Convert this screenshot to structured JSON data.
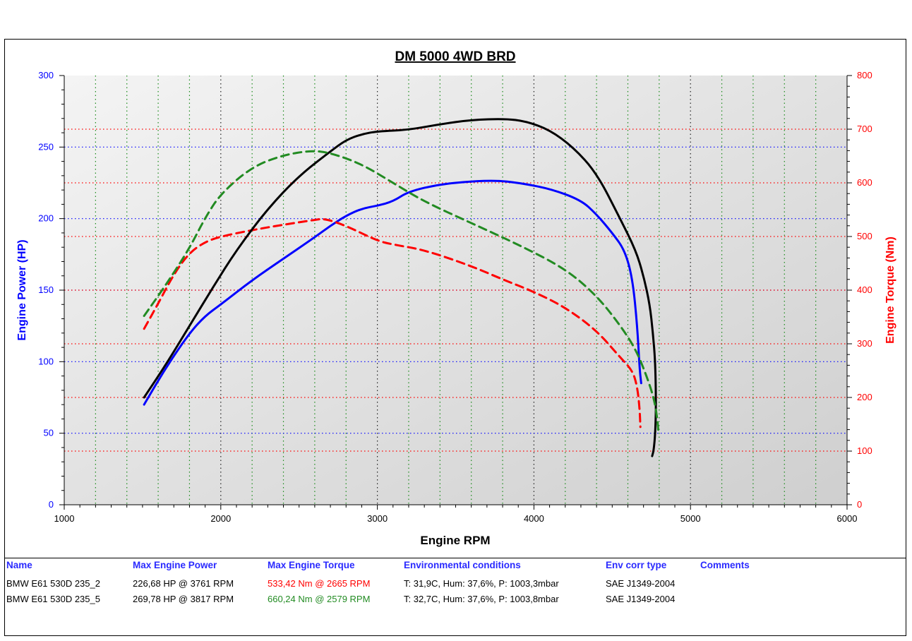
{
  "chart_data": {
    "type": "line",
    "title": "DM 5000 4WD BRD",
    "xlabel": "Engine RPM",
    "ylabel_left": "Engine Power (HP)",
    "ylabel_right": "Engine Torque (Nm)",
    "xlim": [
      1000,
      6000
    ],
    "ylim_left": [
      0,
      300
    ],
    "ylim_right": [
      0,
      800
    ],
    "x_ticks": [
      "1000",
      "2000",
      "3000",
      "4000",
      "5000",
      "6000"
    ],
    "y_left_ticks": [
      "0",
      "50",
      "100",
      "150",
      "200",
      "250",
      "300"
    ],
    "y_right_ticks": [
      "0",
      "100",
      "200",
      "300",
      "400",
      "500",
      "600",
      "700",
      "800"
    ],
    "grid": true,
    "series": [
      {
        "axis": "left",
        "color": "#0000ff",
        "dash": "solid",
        "x": [
          1510,
          1650,
          1800,
          1900,
          2000,
          2200,
          2400,
          2600,
          2700,
          2800,
          2900,
          3000,
          3100,
          3200,
          3400,
          3600,
          3761,
          3900,
          4100,
          4300,
          4400,
          4500,
          4580,
          4630,
          4660,
          4675,
          4685,
          4685
        ],
        "y": [
          70,
          96,
          120,
          132,
          140,
          157,
          172,
          187,
          195,
          202,
          207,
          209,
          212,
          219,
          224,
          226,
          226.68,
          225,
          221,
          213,
          203,
          190,
          178,
          158,
          125,
          95,
          85,
          85
        ]
      },
      {
        "axis": "right",
        "color": "#ff0000",
        "dash": "dashed",
        "x": [
          1510,
          1600,
          1700,
          1800,
          1900,
          2000,
          2200,
          2400,
          2600,
          2665,
          2800,
          3000,
          3100,
          3300,
          3600,
          3800,
          4000,
          4200,
          4400,
          4550,
          4630,
          4660,
          4675,
          4680
        ],
        "y": [
          328,
          375,
          430,
          470,
          490,
          500,
          512,
          522,
          531,
          533.42,
          520,
          492,
          485,
          475,
          445,
          420,
          397,
          368,
          325,
          275,
          250,
          220,
          180,
          145
        ]
      },
      {
        "axis": "left",
        "color": "#000000",
        "dash": "solid",
        "x": [
          1510,
          1650,
          1800,
          1950,
          2100,
          2300,
          2500,
          2700,
          2800,
          2900,
          3000,
          3200,
          3400,
          3600,
          3817,
          3950,
          4100,
          4250,
          4400,
          4550,
          4650,
          4700,
          4740,
          4760,
          4775,
          4780,
          4775,
          4765,
          4755
        ],
        "y": [
          75,
          98,
          125,
          152,
          178,
          207,
          230,
          247,
          255,
          259,
          261,
          262,
          266,
          269,
          269.78,
          268,
          262,
          250,
          232,
          200,
          178,
          160,
          140,
          120,
          100,
          70,
          50,
          38,
          34
        ]
      },
      {
        "axis": "right",
        "color": "#228b22",
        "dash": "dashed",
        "x": [
          1510,
          1650,
          1800,
          1900,
          2000,
          2200,
          2400,
          2579,
          2700,
          2900,
          3100,
          3300,
          3600,
          3900,
          4200,
          4400,
          4550,
          4650,
          4720,
          4770,
          4790,
          4795
        ],
        "y": [
          352,
          410,
          478,
          535,
          580,
          630,
          652,
          660.24,
          656,
          635,
          600,
          565,
          525,
          485,
          440,
          390,
          335,
          290,
          240,
          195,
          155,
          135
        ]
      }
    ]
  },
  "legend": {
    "headers": {
      "name": "Name",
      "max_power": "Max Engine Power",
      "max_torque": "Max Engine Torque",
      "env": "Environmental conditions",
      "env_corr": "Env corr type",
      "comments": "Comments"
    },
    "rows": [
      {
        "name": "BMW E61 530D 235_2",
        "max_power": "226,68 HP @ 3761 RPM",
        "max_torque": "533,42 Nm @ 2665 RPM",
        "torque_color": "#ff0000",
        "env": "T: 31,9C, Hum: 37,6%, P: 1003,3mbar",
        "env_corr": "SAE J1349-2004"
      },
      {
        "name": "BMW E61 530D 235_5",
        "max_power": "269,78 HP @ 3817 RPM",
        "max_torque": "660,24 Nm @ 2579 RPM",
        "torque_color": "#228b22",
        "env": "T: 32,7C, Hum: 37,6%, P: 1003,8mbar",
        "env_corr": "SAE J1349-2004"
      }
    ]
  }
}
